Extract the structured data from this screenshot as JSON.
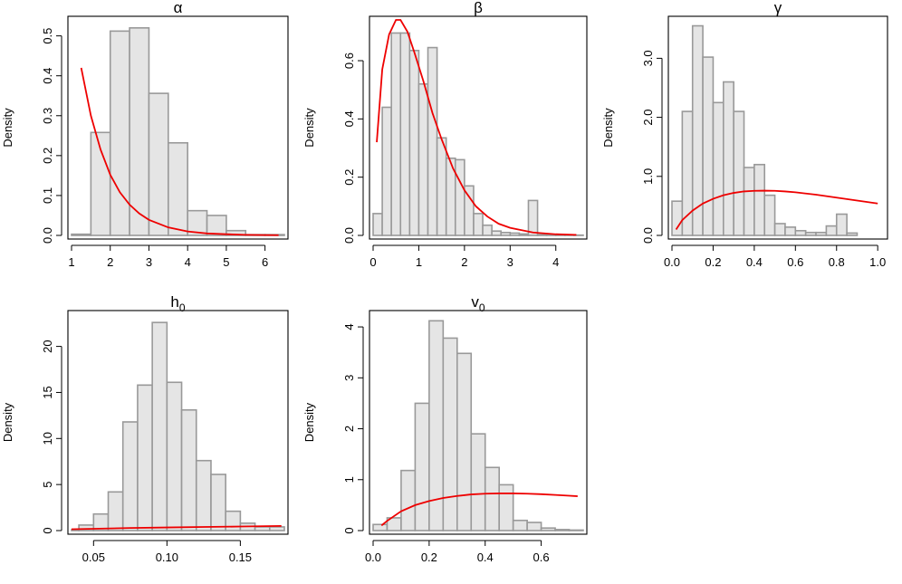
{
  "chart_data": [
    {
      "type": "bar",
      "title": "α",
      "title_sub": "",
      "xlabel": "",
      "ylabel": "Density",
      "bins": [
        {
          "x0": 1.0,
          "x1": 1.5,
          "h": 0.003
        },
        {
          "x0": 1.5,
          "x1": 2.0,
          "h": 0.258
        },
        {
          "x0": 2.0,
          "x1": 2.5,
          "h": 0.512
        },
        {
          "x0": 2.5,
          "x1": 3.0,
          "h": 0.52
        },
        {
          "x0": 3.0,
          "x1": 3.5,
          "h": 0.356
        },
        {
          "x0": 3.5,
          "x1": 4.0,
          "h": 0.232
        },
        {
          "x0": 4.0,
          "x1": 4.5,
          "h": 0.062
        },
        {
          "x0": 4.5,
          "x1": 5.0,
          "h": 0.05
        },
        {
          "x0": 5.0,
          "x1": 5.5,
          "h": 0.012
        },
        {
          "x0": 5.5,
          "x1": 6.0,
          "h": 0.002
        },
        {
          "x0": 6.0,
          "x1": 6.5,
          "h": 0.002
        }
      ],
      "prior_curve": {
        "name": "prior density (red)",
        "x": [
          1.25,
          1.5,
          1.75,
          2.0,
          2.25,
          2.5,
          2.75,
          3.0,
          3.5,
          4.0,
          4.5,
          5.0,
          5.5,
          6.0,
          6.35
        ],
        "y": [
          0.42,
          0.3,
          0.215,
          0.152,
          0.108,
          0.077,
          0.055,
          0.039,
          0.02,
          0.01,
          0.005,
          0.003,
          0.0015,
          0.0008,
          0.0005
        ]
      },
      "xlim": [
        1.0,
        6.5
      ],
      "ylim": [
        0,
        0.54
      ],
      "xticks": [
        1,
        2,
        3,
        4,
        5,
        6
      ],
      "xtick_labels": [
        "1",
        "2",
        "3",
        "4",
        "5",
        "6"
      ],
      "yticks": [
        0,
        0.1,
        0.2,
        0.3,
        0.4,
        0.5
      ],
      "ytick_labels": [
        "0.0",
        "0.1",
        "0.2",
        "0.3",
        "0.4",
        "0.5"
      ]
    },
    {
      "type": "bar",
      "title": "β",
      "title_sub": "",
      "xlabel": "",
      "ylabel": "Density",
      "bins": [
        {
          "x0": 0.0,
          "x1": 0.2,
          "h": 0.075
        },
        {
          "x0": 0.2,
          "x1": 0.4,
          "h": 0.44
        },
        {
          "x0": 0.4,
          "x1": 0.6,
          "h": 0.695
        },
        {
          "x0": 0.6,
          "x1": 0.8,
          "h": 0.695
        },
        {
          "x0": 0.8,
          "x1": 1.0,
          "h": 0.635
        },
        {
          "x0": 1.0,
          "x1": 1.2,
          "h": 0.52
        },
        {
          "x0": 1.2,
          "x1": 1.4,
          "h": 0.645
        },
        {
          "x0": 1.4,
          "x1": 1.6,
          "h": 0.335
        },
        {
          "x0": 1.6,
          "x1": 1.8,
          "h": 0.265
        },
        {
          "x0": 1.8,
          "x1": 2.0,
          "h": 0.26
        },
        {
          "x0": 2.0,
          "x1": 2.2,
          "h": 0.17
        },
        {
          "x0": 2.2,
          "x1": 2.4,
          "h": 0.075
        },
        {
          "x0": 2.4,
          "x1": 2.6,
          "h": 0.035
        },
        {
          "x0": 2.6,
          "x1": 2.8,
          "h": 0.015
        },
        {
          "x0": 2.8,
          "x1": 3.0,
          "h": 0.01
        },
        {
          "x0": 3.0,
          "x1": 3.2,
          "h": 0.008
        },
        {
          "x0": 3.2,
          "x1": 3.4,
          "h": 0.005
        },
        {
          "x0": 3.4,
          "x1": 3.6,
          "h": 0.12
        },
        {
          "x0": 3.6,
          "x1": 3.8,
          "h": 0.003
        },
        {
          "x0": 3.8,
          "x1": 4.0,
          "h": 0.002
        },
        {
          "x0": 4.0,
          "x1": 4.2,
          "h": 0.002
        },
        {
          "x0": 4.2,
          "x1": 4.4,
          "h": 0.002
        },
        {
          "x0": 4.4,
          "x1": 4.6,
          "h": 0.001
        }
      ],
      "prior_curve": {
        "name": "prior density (red)",
        "x": [
          0.08,
          0.2,
          0.35,
          0.5,
          0.6,
          0.75,
          0.9,
          1.1,
          1.3,
          1.5,
          1.75,
          2.0,
          2.25,
          2.5,
          2.75,
          3.0,
          3.5,
          4.0,
          4.45
        ],
        "y": [
          0.32,
          0.57,
          0.69,
          0.74,
          0.74,
          0.7,
          0.63,
          0.53,
          0.42,
          0.33,
          0.23,
          0.155,
          0.1,
          0.065,
          0.04,
          0.026,
          0.01,
          0.004,
          0.002
        ]
      },
      "xlim": [
        0.0,
        4.6
      ],
      "ylim": [
        0,
        0.74
      ],
      "xticks": [
        0,
        1,
        2,
        3,
        4
      ],
      "xtick_labels": [
        "0",
        "1",
        "2",
        "3",
        "4"
      ],
      "yticks": [
        0,
        0.2,
        0.4,
        0.6
      ],
      "ytick_labels": [
        "0.0",
        "0.2",
        "0.4",
        "0.6"
      ]
    },
    {
      "type": "bar",
      "title": "γ",
      "title_sub": "",
      "xlabel": "",
      "ylabel": "Density",
      "bins": [
        {
          "x0": 0.0,
          "x1": 0.05,
          "h": 0.58
        },
        {
          "x0": 0.05,
          "x1": 0.1,
          "h": 2.1
        },
        {
          "x0": 0.1,
          "x1": 0.15,
          "h": 3.55
        },
        {
          "x0": 0.15,
          "x1": 0.2,
          "h": 3.02
        },
        {
          "x0": 0.2,
          "x1": 0.25,
          "h": 2.25
        },
        {
          "x0": 0.25,
          "x1": 0.3,
          "h": 2.6
        },
        {
          "x0": 0.3,
          "x1": 0.35,
          "h": 2.1
        },
        {
          "x0": 0.35,
          "x1": 0.4,
          "h": 1.15
        },
        {
          "x0": 0.4,
          "x1": 0.45,
          "h": 1.2
        },
        {
          "x0": 0.45,
          "x1": 0.5,
          "h": 0.68
        },
        {
          "x0": 0.5,
          "x1": 0.55,
          "h": 0.2
        },
        {
          "x0": 0.55,
          "x1": 0.6,
          "h": 0.14
        },
        {
          "x0": 0.6,
          "x1": 0.65,
          "h": 0.08
        },
        {
          "x0": 0.65,
          "x1": 0.7,
          "h": 0.05
        },
        {
          "x0": 0.7,
          "x1": 0.75,
          "h": 0.05
        },
        {
          "x0": 0.75,
          "x1": 0.8,
          "h": 0.16
        },
        {
          "x0": 0.8,
          "x1": 0.85,
          "h": 0.36
        },
        {
          "x0": 0.85,
          "x1": 0.9,
          "h": 0.04
        }
      ],
      "prior_curve": {
        "name": "prior density (red)",
        "x": [
          0.02,
          0.05,
          0.1,
          0.15,
          0.2,
          0.25,
          0.3,
          0.35,
          0.4,
          0.45,
          0.5,
          0.55,
          0.6,
          0.7,
          0.8,
          0.9,
          1.0
        ],
        "y": [
          0.1,
          0.26,
          0.42,
          0.54,
          0.62,
          0.68,
          0.72,
          0.745,
          0.755,
          0.758,
          0.755,
          0.745,
          0.73,
          0.69,
          0.64,
          0.59,
          0.54
        ]
      },
      "xlim": [
        0.0,
        1.03
      ],
      "ylim": [
        0,
        3.65
      ],
      "xticks": [
        0.0,
        0.2,
        0.4,
        0.6,
        0.8,
        1.0
      ],
      "xtick_labels": [
        "0.0",
        "0.2",
        "0.4",
        "0.6",
        "0.8",
        "1.0"
      ],
      "yticks": [
        0,
        1,
        2,
        3
      ],
      "ytick_labels": [
        "0.0",
        "1.0",
        "2.0",
        "3.0"
      ]
    },
    {
      "type": "bar",
      "title": "h",
      "title_sub": "0",
      "xlabel": "",
      "ylabel": "Density",
      "bins": [
        {
          "x0": 0.035,
          "x1": 0.04,
          "h": 0.1
        },
        {
          "x0": 0.04,
          "x1": 0.05,
          "h": 0.6
        },
        {
          "x0": 0.05,
          "x1": 0.06,
          "h": 1.8
        },
        {
          "x0": 0.06,
          "x1": 0.07,
          "h": 4.2
        },
        {
          "x0": 0.07,
          "x1": 0.08,
          "h": 11.8
        },
        {
          "x0": 0.08,
          "x1": 0.09,
          "h": 15.8
        },
        {
          "x0": 0.09,
          "x1": 0.1,
          "h": 22.6
        },
        {
          "x0": 0.1,
          "x1": 0.11,
          "h": 16.1
        },
        {
          "x0": 0.11,
          "x1": 0.12,
          "h": 13.1
        },
        {
          "x0": 0.12,
          "x1": 0.13,
          "h": 7.6
        },
        {
          "x0": 0.13,
          "x1": 0.14,
          "h": 6.1
        },
        {
          "x0": 0.14,
          "x1": 0.15,
          "h": 2.1
        },
        {
          "x0": 0.15,
          "x1": 0.16,
          "h": 0.8
        },
        {
          "x0": 0.16,
          "x1": 0.17,
          "h": 0.4
        },
        {
          "x0": 0.17,
          "x1": 0.18,
          "h": 0.4
        }
      ],
      "prior_curve": {
        "name": "prior density (red)",
        "x": [
          0.035,
          0.05,
          0.075,
          0.1,
          0.125,
          0.15,
          0.178
        ],
        "y": [
          0.15,
          0.2,
          0.28,
          0.34,
          0.39,
          0.44,
          0.5
        ]
      },
      "xlim": [
        0.035,
        0.18
      ],
      "ylim": [
        0,
        23.5
      ],
      "xticks": [
        0.05,
        0.1,
        0.15
      ],
      "xtick_labels": [
        "0.05",
        "0.10",
        "0.15"
      ],
      "yticks": [
        0,
        5,
        10,
        15,
        20
      ],
      "ytick_labels": [
        "0",
        "5",
        "10",
        "15",
        "20"
      ]
    },
    {
      "type": "bar",
      "title": "v",
      "title_sub": "0",
      "xlabel": "",
      "ylabel": "Density",
      "bins": [
        {
          "x0": 0.0,
          "x1": 0.05,
          "h": 0.12
        },
        {
          "x0": 0.05,
          "x1": 0.1,
          "h": 0.25
        },
        {
          "x0": 0.1,
          "x1": 0.15,
          "h": 1.18
        },
        {
          "x0": 0.15,
          "x1": 0.2,
          "h": 2.5
        },
        {
          "x0": 0.2,
          "x1": 0.25,
          "h": 4.12
        },
        {
          "x0": 0.25,
          "x1": 0.3,
          "h": 3.78
        },
        {
          "x0": 0.3,
          "x1": 0.35,
          "h": 3.48
        },
        {
          "x0": 0.35,
          "x1": 0.4,
          "h": 1.9
        },
        {
          "x0": 0.4,
          "x1": 0.45,
          "h": 1.24
        },
        {
          "x0": 0.45,
          "x1": 0.5,
          "h": 0.9
        },
        {
          "x0": 0.5,
          "x1": 0.55,
          "h": 0.2
        },
        {
          "x0": 0.55,
          "x1": 0.6,
          "h": 0.16
        },
        {
          "x0": 0.6,
          "x1": 0.65,
          "h": 0.05
        },
        {
          "x0": 0.65,
          "x1": 0.7,
          "h": 0.02
        },
        {
          "x0": 0.7,
          "x1": 0.75,
          "h": 0.01
        }
      ],
      "prior_curve": {
        "name": "prior density (red)",
        "x": [
          0.03,
          0.05,
          0.1,
          0.15,
          0.2,
          0.25,
          0.3,
          0.35,
          0.4,
          0.45,
          0.5,
          0.55,
          0.6,
          0.65,
          0.7,
          0.73
        ],
        "y": [
          0.1,
          0.19,
          0.38,
          0.5,
          0.58,
          0.64,
          0.68,
          0.71,
          0.725,
          0.73,
          0.73,
          0.725,
          0.715,
          0.7,
          0.685,
          0.675
        ]
      },
      "xlim": [
        0.0,
        0.75
      ],
      "ylim": [
        0,
        4.25
      ],
      "xticks": [
        0.0,
        0.2,
        0.4,
        0.6
      ],
      "xtick_labels": [
        "0.0",
        "0.2",
        "0.4",
        "0.6"
      ],
      "yticks": [
        0,
        1,
        2,
        3,
        4
      ],
      "ytick_labels": [
        "0",
        "1",
        "2",
        "3",
        "4"
      ]
    }
  ],
  "colors": {
    "bar_fill": "#e5e5e5",
    "bar_stroke": "#999999",
    "curve": "#ee0000",
    "axis": "#000000"
  }
}
